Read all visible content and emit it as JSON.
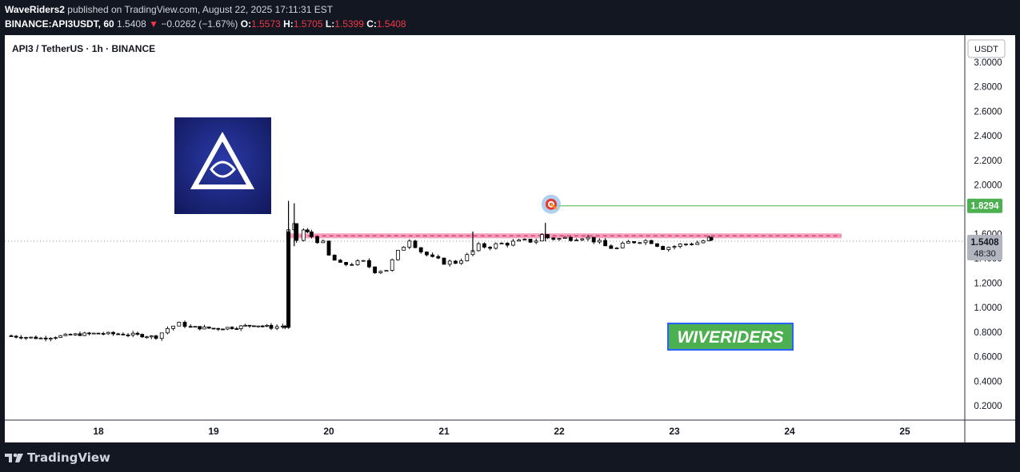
{
  "header": {
    "author": "WaveRiders2",
    "published_text": "published on TradingView.com, August 22, 2025 17:11:31 EST",
    "symbol_full": "BINANCE:API3USDT, 60",
    "last_price": "1.5408",
    "change_arrow": "▼",
    "change": "−0.0262 (−1.67%)",
    "o_label": "O:",
    "o_value": "1.5573",
    "h_label": "H:",
    "h_value": "1.5705",
    "l_label": "L:",
    "l_value": "1.5399",
    "c_label": "C:",
    "c_value": "1.5408"
  },
  "chart_title": "API3 / TetherUS · 1h · BINANCE",
  "currency": "USDT",
  "watermark": "WIVERIDERS",
  "footer": {
    "brand": "TradingView",
    "logo_icon": "tradingview-logo-icon"
  },
  "colors": {
    "up": "#ffffff",
    "down": "#000000",
    "target_line": "#4caf50",
    "resistance_zone": "#f48fb1",
    "watermark_bg": "#4caf50",
    "watermark_border": "#2962ff"
  },
  "chart_data": {
    "type": "candlestick",
    "title": "API3 / TetherUS · 1h · BINANCE",
    "x_axis": {
      "tick_labels": [
        "18",
        "19",
        "20",
        "21",
        "22",
        "23",
        "24",
        "25"
      ],
      "unit": "day (August 2025)"
    },
    "y_axis": {
      "label": "USDT",
      "ylim": [
        0.1,
        3.0
      ],
      "ticks": [
        "0.2000",
        "0.4000",
        "0.6000",
        "0.8000",
        "1.0000",
        "1.2000",
        "1.4000",
        "1.6000",
        "1.8000",
        "2.0000",
        "2.2000",
        "2.4000",
        "2.6000",
        "2.8000"
      ]
    },
    "price_labels": {
      "last_price": "1.5408",
      "countdown": "48:30",
      "target": "1.8294"
    },
    "target_level": 1.8294,
    "resistance_zone": [
      1.565,
      1.605
    ],
    "resistance_dashed_level": 1.585,
    "grid": false,
    "price_path": [
      [
        17.2,
        0.77
      ],
      [
        17.5,
        0.75
      ],
      [
        17.8,
        0.78
      ],
      [
        18.0,
        0.79
      ],
      [
        18.3,
        0.78
      ],
      [
        18.5,
        0.76
      ],
      [
        18.6,
        0.83
      ],
      [
        18.7,
        0.87
      ],
      [
        18.8,
        0.84
      ],
      [
        19.0,
        0.83
      ],
      [
        19.2,
        0.84
      ],
      [
        19.35,
        0.86
      ],
      [
        19.5,
        0.84
      ],
      [
        19.6,
        0.85
      ],
      [
        19.62,
        0.84
      ],
      [
        19.65,
        1.62
      ],
      [
        19.7,
        1.66
      ],
      [
        19.72,
        1.55
      ],
      [
        19.78,
        1.63
      ],
      [
        19.85,
        1.58
      ],
      [
        19.95,
        1.52
      ],
      [
        20.0,
        1.42
      ],
      [
        20.1,
        1.35
      ],
      [
        20.2,
        1.36
      ],
      [
        20.3,
        1.37
      ],
      [
        20.4,
        1.3
      ],
      [
        20.5,
        1.31
      ],
      [
        20.6,
        1.45
      ],
      [
        20.7,
        1.56
      ],
      [
        20.8,
        1.46
      ],
      [
        20.9,
        1.4
      ],
      [
        21.0,
        1.37
      ],
      [
        21.1,
        1.37
      ],
      [
        21.2,
        1.42
      ],
      [
        21.3,
        1.5
      ],
      [
        21.4,
        1.5
      ],
      [
        21.5,
        1.52
      ],
      [
        21.6,
        1.53
      ],
      [
        21.7,
        1.54
      ],
      [
        21.8,
        1.55
      ],
      [
        21.85,
        1.59
      ],
      [
        21.9,
        1.57
      ],
      [
        22.0,
        1.56
      ],
      [
        22.1,
        1.57
      ],
      [
        22.2,
        1.58
      ],
      [
        22.3,
        1.55
      ],
      [
        22.4,
        1.5
      ],
      [
        22.5,
        1.48
      ],
      [
        22.6,
        1.53
      ],
      [
        22.7,
        1.55
      ],
      [
        22.8,
        1.54
      ],
      [
        22.9,
        1.49
      ],
      [
        23.0,
        1.5
      ],
      [
        23.1,
        1.52
      ],
      [
        23.2,
        1.53
      ],
      [
        23.3,
        1.56
      ],
      [
        23.32,
        1.5408
      ]
    ],
    "spikes": [
      {
        "x": 19.65,
        "high": 1.87,
        "low": 0.84
      },
      {
        "x": 19.7,
        "high": 1.85,
        "low": 1.5
      },
      {
        "x": 21.25,
        "high": 1.62,
        "low": 1.45
      },
      {
        "x": 21.88,
        "high": 1.69,
        "low": 1.54
      }
    ]
  }
}
